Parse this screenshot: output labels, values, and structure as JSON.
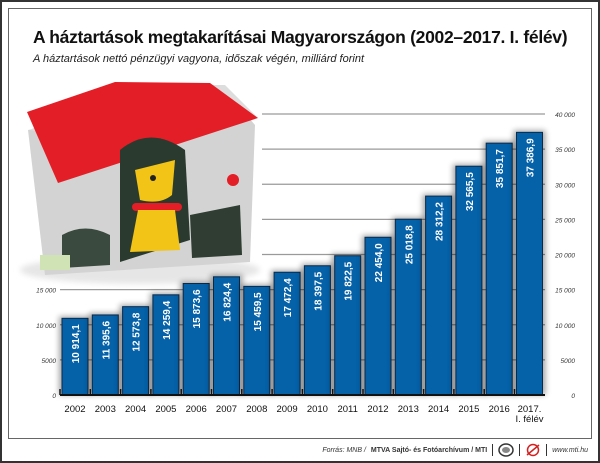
{
  "title": "A háztartások megtakarításai Magyarországon (2002–2017. I. félév)",
  "subtitle": "A háztartások nettó pénzügyi vagyona, időszak végén, milliárd forint",
  "chart_data": {
    "type": "bar",
    "title": "A háztartások megtakarításai Magyarországon (2002–2017. I. félév)",
    "subtitle": "A háztartások nettó pénzügyi vagyona, időszak végén, milliárd forint",
    "categories": [
      "2002",
      "2003",
      "2004",
      "2005",
      "2006",
      "2007",
      "2008",
      "2009",
      "2010",
      "2011",
      "2012",
      "2013",
      "2014",
      "2015",
      "2016",
      "2017.|I. félév"
    ],
    "values": [
      10914.1,
      11395.6,
      12573.8,
      14259.4,
      15873.6,
      16824.4,
      15459.5,
      17472.4,
      18397.5,
      19822.5,
      22454.0,
      25018.8,
      28312.2,
      32565.5,
      35851.7,
      37386.9
    ],
    "data_labels": [
      "10 914,1",
      "11 395,6",
      "12 573,8",
      "14 259,4",
      "15 873,6",
      "16 824,4",
      "15 459,5",
      "17 472,4",
      "18 397,5",
      "19 822,5",
      "22 454,0",
      "25 018,8",
      "28 312,2",
      "32 565,5",
      "35 851,7",
      "37 386,9"
    ],
    "yticks": [
      0,
      5000,
      10000,
      15000,
      20000,
      25000,
      30000,
      35000,
      40000
    ],
    "ytick_labels": [
      "0",
      "5000",
      "10 000",
      "15 000",
      "20 000",
      "25 000",
      "30 000",
      "35 000",
      "40 000"
    ],
    "ylim": [
      0,
      40000
    ],
    "grid": true,
    "bar_color": "#0561a8"
  },
  "footer": {
    "source": "Forrás: MNB / ",
    "agency": "MTVA Sajtó- és Fotóarchívum / MTI",
    "url": "www.mti.hu"
  }
}
